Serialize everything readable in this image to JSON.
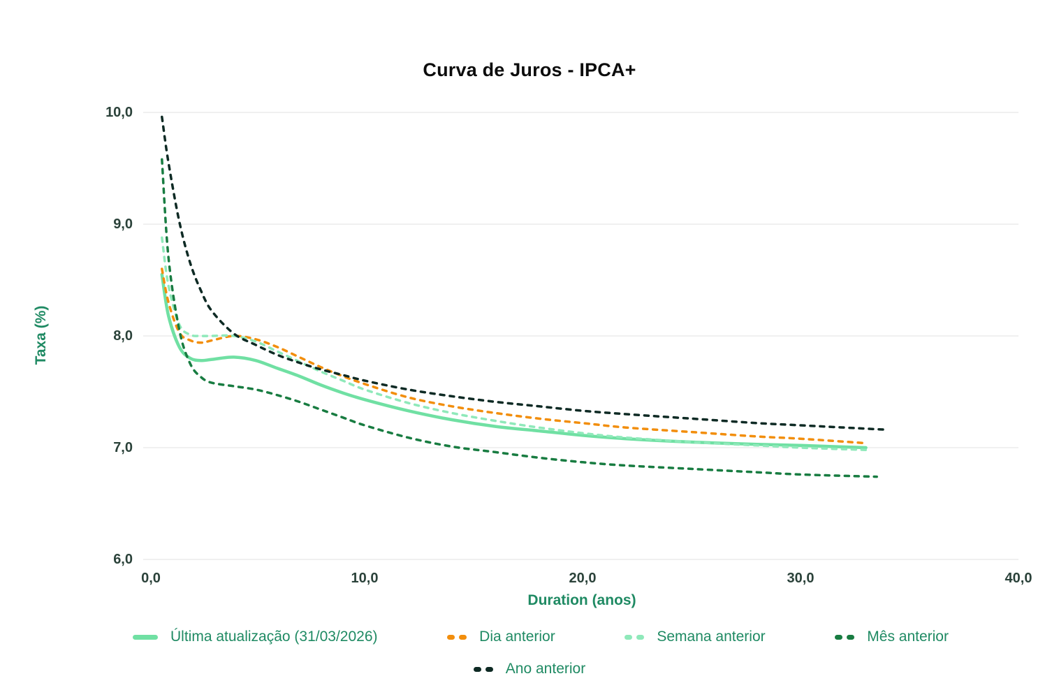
{
  "colors": {
    "background": "#ffffff",
    "grid": "#ebebeb",
    "title_text": "#0c0c0c",
    "tick_text": "#2b423a",
    "axis_label_text": "#1f8a63",
    "legend_text": "#1f8a63"
  },
  "chart_data": {
    "type": "line",
    "title": "Curva de Juros - IPCA+",
    "xlabel": "Duration (anos)",
    "ylabel": "Taxa (%)",
    "xlim": [
      0,
      40
    ],
    "ylim": [
      6,
      10
    ],
    "x_ticks": [
      0,
      10,
      20,
      30,
      40
    ],
    "x_tick_labels": [
      "0,0",
      "10,0",
      "20,0",
      "30,0",
      "40,0"
    ],
    "y_ticks": [
      6,
      7,
      8,
      9,
      10
    ],
    "y_tick_labels": [
      "6,0",
      "7,0",
      "8,0",
      "9,0",
      "10,0"
    ],
    "grid": "horizontal",
    "legend_position": "bottom",
    "series": [
      {
        "id": "ultima-atualizacao",
        "name": "Última atualização (31/03/2026)",
        "color": "#70e0a3",
        "style": "solid",
        "points": [
          [
            0.7,
            8.55
          ],
          [
            1,
            8.18
          ],
          [
            1.5,
            7.9
          ],
          [
            2,
            7.8
          ],
          [
            2.5,
            7.78
          ],
          [
            3,
            7.79
          ],
          [
            4,
            7.81
          ],
          [
            5,
            7.78
          ],
          [
            6,
            7.71
          ],
          [
            7,
            7.64
          ],
          [
            8,
            7.56
          ],
          [
            9,
            7.49
          ],
          [
            10,
            7.43
          ],
          [
            12,
            7.33
          ],
          [
            14,
            7.25
          ],
          [
            16,
            7.19
          ],
          [
            18,
            7.15
          ],
          [
            20,
            7.11
          ],
          [
            22,
            7.08
          ],
          [
            25,
            7.05
          ],
          [
            28,
            7.03
          ],
          [
            30,
            7.02
          ],
          [
            33,
            7.0
          ]
        ]
      },
      {
        "id": "dia-anterior",
        "name": "Dia anterior",
        "color": "#f28e0d",
        "style": "dashed",
        "points": [
          [
            0.7,
            8.6
          ],
          [
            1,
            8.3
          ],
          [
            1.5,
            8.03
          ],
          [
            2,
            7.96
          ],
          [
            2.5,
            7.94
          ],
          [
            3,
            7.96
          ],
          [
            4,
            8.0
          ],
          [
            5,
            7.97
          ],
          [
            6,
            7.9
          ],
          [
            7,
            7.81
          ],
          [
            8,
            7.72
          ],
          [
            9,
            7.64
          ],
          [
            10,
            7.57
          ],
          [
            12,
            7.45
          ],
          [
            14,
            7.37
          ],
          [
            16,
            7.31
          ],
          [
            18,
            7.26
          ],
          [
            20,
            7.22
          ],
          [
            22,
            7.18
          ],
          [
            25,
            7.14
          ],
          [
            28,
            7.1
          ],
          [
            30,
            7.08
          ],
          [
            33,
            7.04
          ]
        ]
      },
      {
        "id": "semana-anterior",
        "name": "Semana anterior",
        "color": "#8fe9ba",
        "style": "dashed",
        "points": [
          [
            0.7,
            8.88
          ],
          [
            1,
            8.45
          ],
          [
            1.5,
            8.1
          ],
          [
            2,
            8.01
          ],
          [
            2.5,
            8.0
          ],
          [
            3,
            8.0
          ],
          [
            4,
            8.0
          ],
          [
            5,
            7.95
          ],
          [
            6,
            7.86
          ],
          [
            7,
            7.77
          ],
          [
            8,
            7.68
          ],
          [
            9,
            7.6
          ],
          [
            10,
            7.52
          ],
          [
            12,
            7.4
          ],
          [
            14,
            7.31
          ],
          [
            16,
            7.24
          ],
          [
            18,
            7.18
          ],
          [
            20,
            7.13
          ],
          [
            22,
            7.09
          ],
          [
            25,
            7.05
          ],
          [
            28,
            7.02
          ],
          [
            30,
            7.0
          ],
          [
            33,
            6.98
          ]
        ]
      },
      {
        "id": "mes-anterior",
        "name": "Mês anterior",
        "color": "#187c41",
        "style": "dashed",
        "points": [
          [
            0.7,
            9.58
          ],
          [
            1,
            8.7
          ],
          [
            1.5,
            8.05
          ],
          [
            2,
            7.75
          ],
          [
            2.5,
            7.63
          ],
          [
            3,
            7.58
          ],
          [
            4,
            7.55
          ],
          [
            5,
            7.52
          ],
          [
            6,
            7.47
          ],
          [
            7,
            7.41
          ],
          [
            8,
            7.34
          ],
          [
            9,
            7.27
          ],
          [
            10,
            7.2
          ],
          [
            12,
            7.09
          ],
          [
            14,
            7.01
          ],
          [
            16,
            6.96
          ],
          [
            18,
            6.91
          ],
          [
            20,
            6.87
          ],
          [
            22,
            6.84
          ],
          [
            25,
            6.81
          ],
          [
            28,
            6.78
          ],
          [
            30,
            6.76
          ],
          [
            33.5,
            6.74
          ]
        ]
      },
      {
        "id": "ano-anterior",
        "name": "Ano anterior",
        "color": "#0e2a24",
        "style": "dashed",
        "points": [
          [
            0.7,
            9.96
          ],
          [
            1,
            9.55
          ],
          [
            1.5,
            9.02
          ],
          [
            2,
            8.65
          ],
          [
            2.5,
            8.4
          ],
          [
            3,
            8.22
          ],
          [
            4,
            8.02
          ],
          [
            5,
            7.92
          ],
          [
            6,
            7.83
          ],
          [
            7,
            7.76
          ],
          [
            8,
            7.7
          ],
          [
            9,
            7.65
          ],
          [
            10,
            7.6
          ],
          [
            12,
            7.52
          ],
          [
            14,
            7.46
          ],
          [
            16,
            7.41
          ],
          [
            18,
            7.37
          ],
          [
            20,
            7.33
          ],
          [
            22,
            7.3
          ],
          [
            25,
            7.26
          ],
          [
            28,
            7.22
          ],
          [
            30,
            7.2
          ],
          [
            34,
            7.16
          ]
        ]
      }
    ]
  }
}
